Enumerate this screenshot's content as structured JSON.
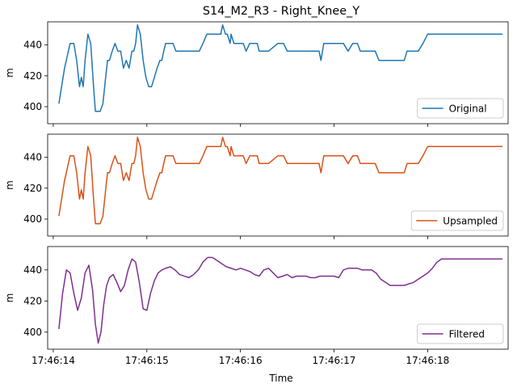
{
  "chart_data": {
    "type": "line",
    "title": "S14_M2_R3 - Right_Knee_Y",
    "xlabel": "Time",
    "xticks": [
      "17:46:14",
      "17:46:15",
      "17:46:16",
      "17:46:17",
      "17:46:18"
    ],
    "xlim": [
      -0.06,
      4.86
    ],
    "shared_x": true,
    "subplots": [
      {
        "ylabel": "m",
        "ylim": [
          389,
          455
        ],
        "yticks": [
          400,
          420,
          440
        ],
        "legend_placement": "lower-right",
        "series": [
          {
            "name": "Original",
            "color": "#1f77b4",
            "x": [
              0.06,
              0.12,
              0.18,
              0.22,
              0.25,
              0.28,
              0.3,
              0.32,
              0.34,
              0.37,
              0.4,
              0.43,
              0.45,
              0.48,
              0.5,
              0.53,
              0.56,
              0.58,
              0.6,
              0.63,
              0.66,
              0.69,
              0.72,
              0.75,
              0.78,
              0.81,
              0.84,
              0.86,
              0.88,
              0.9,
              0.93,
              0.96,
              0.99,
              1.02,
              1.05,
              1.08,
              1.11,
              1.14,
              1.16,
              1.18,
              1.2,
              1.24,
              1.28,
              1.31,
              1.34,
              1.37,
              1.4,
              1.52,
              1.56,
              1.6,
              1.64,
              1.72,
              1.79,
              1.81,
              1.84,
              1.86,
              1.89,
              1.9,
              1.93,
              1.96,
              2.0,
              2.03,
              2.06,
              2.1,
              2.15,
              2.18,
              2.2,
              2.25,
              2.3,
              2.4,
              2.43,
              2.46,
              2.5,
              2.54,
              2.58,
              2.64,
              2.67,
              2.72,
              2.75,
              2.81,
              2.84,
              2.86,
              2.89,
              2.92,
              2.96,
              3.0,
              3.05,
              3.1,
              3.15,
              3.2,
              3.25,
              3.28,
              3.3,
              3.33,
              3.38,
              3.44,
              3.48,
              3.55,
              3.6,
              3.62,
              3.65,
              3.7,
              3.75,
              3.78,
              3.82,
              3.85,
              3.9,
              3.95,
              4.0,
              4.05,
              4.1,
              4.15,
              4.2,
              4.25,
              4.3,
              4.32,
              4.35,
              4.4,
              4.45,
              4.5,
              4.55,
              4.6,
              4.65,
              4.7,
              4.75,
              4.8
            ],
            "y": [
              402,
              425,
              441,
              441,
              430,
              413,
              419,
              413,
              430,
              447,
              441,
              413,
              397,
              397,
              397,
              402,
              419,
              430,
              430,
              436,
              441,
              436,
              436,
              425,
              430,
              425,
              436,
              436,
              441,
              453,
              447,
              430,
              419,
              413,
              413,
              419,
              425,
              430,
              430,
              436,
              441,
              441,
              441,
              436,
              436,
              436,
              436,
              436,
              436,
              441,
              447,
              447,
              447,
              453,
              447,
              447,
              441,
              447,
              441,
              441,
              441,
              441,
              436,
              441,
              441,
              441,
              436,
              436,
              436,
              441,
              441,
              441,
              436,
              436,
              436,
              436,
              436,
              436,
              436,
              436,
              436,
              430,
              441,
              441,
              441,
              441,
              441,
              441,
              436,
              441,
              441,
              436,
              436,
              436,
              436,
              436,
              430,
              430,
              430,
              430,
              430,
              430,
              430,
              436,
              436,
              436,
              436,
              441,
              447,
              447,
              447,
              447,
              447,
              447,
              447,
              447,
              447,
              447,
              447,
              447,
              447,
              447,
              447,
              447,
              447,
              447
            ],
            "x_sparse": true
          }
        ]
      },
      {
        "ylabel": "m",
        "ylim": [
          389,
          455
        ],
        "yticks": [
          400,
          420,
          440
        ],
        "legend_placement": "lower-right",
        "series": [
          {
            "name": "Upsampled",
            "color": "#d95319",
            "same_as": "Original"
          }
        ]
      },
      {
        "ylabel": "m",
        "ylim": [
          389,
          455
        ],
        "yticks": [
          400,
          420,
          440
        ],
        "legend_placement": "lower-right",
        "series": [
          {
            "name": "Filtered",
            "color": "#7e2f8e",
            "x": [
              0.06,
              0.1,
              0.14,
              0.18,
              0.22,
              0.26,
              0.3,
              0.34,
              0.38,
              0.42,
              0.45,
              0.48,
              0.51,
              0.54,
              0.57,
              0.6,
              0.64,
              0.68,
              0.72,
              0.76,
              0.8,
              0.84,
              0.88,
              0.92,
              0.96,
              1.0,
              1.04,
              1.08,
              1.12,
              1.16,
              1.2,
              1.25,
              1.3,
              1.35,
              1.4,
              1.45,
              1.5,
              1.55,
              1.6,
              1.65,
              1.7,
              1.75,
              1.8,
              1.85,
              1.9,
              1.95,
              2.0,
              2.05,
              2.1,
              2.15,
              2.2,
              2.25,
              2.3,
              2.35,
              2.4,
              2.45,
              2.5,
              2.55,
              2.6,
              2.65,
              2.7,
              2.75,
              2.8,
              2.85,
              2.9,
              2.95,
              3.0,
              3.05,
              3.1,
              3.15,
              3.2,
              3.25,
              3.3,
              3.35,
              3.4,
              3.45,
              3.5,
              3.55,
              3.6,
              3.65,
              3.7,
              3.75,
              3.8,
              3.85,
              3.9,
              3.95,
              4.0,
              4.05,
              4.1,
              4.15,
              4.2,
              4.25,
              4.3,
              4.35,
              4.4,
              4.45,
              4.5,
              4.55,
              4.6,
              4.65,
              4.7,
              4.75,
              4.8
            ],
            "y": [
              402,
              425,
              440,
              438,
              425,
              414,
              422,
              438,
              443,
              427,
              405,
              393,
              400,
              418,
              430,
              435,
              437,
              432,
              426,
              430,
              440,
              447,
              445,
              432,
              415,
              414,
              425,
              433,
              438,
              440,
              441,
              442,
              440,
              437,
              436,
              435,
              437,
              440,
              445,
              448,
              448,
              446,
              444,
              442,
              441,
              440,
              441,
              440,
              439,
              437,
              436,
              440,
              441,
              438,
              435,
              436,
              437,
              435,
              436,
              436,
              436,
              435,
              435,
              436,
              436,
              436,
              436,
              435,
              440,
              441,
              441,
              441,
              440,
              440,
              440,
              438,
              434,
              432,
              430,
              430,
              430,
              430,
              431,
              432,
              434,
              436,
              438,
              441,
              445,
              447,
              447,
              447,
              447,
              447,
              447,
              447,
              447,
              447,
              447,
              447,
              447,
              447,
              447
            ],
            "x_sparse": true
          }
        ]
      }
    ]
  }
}
